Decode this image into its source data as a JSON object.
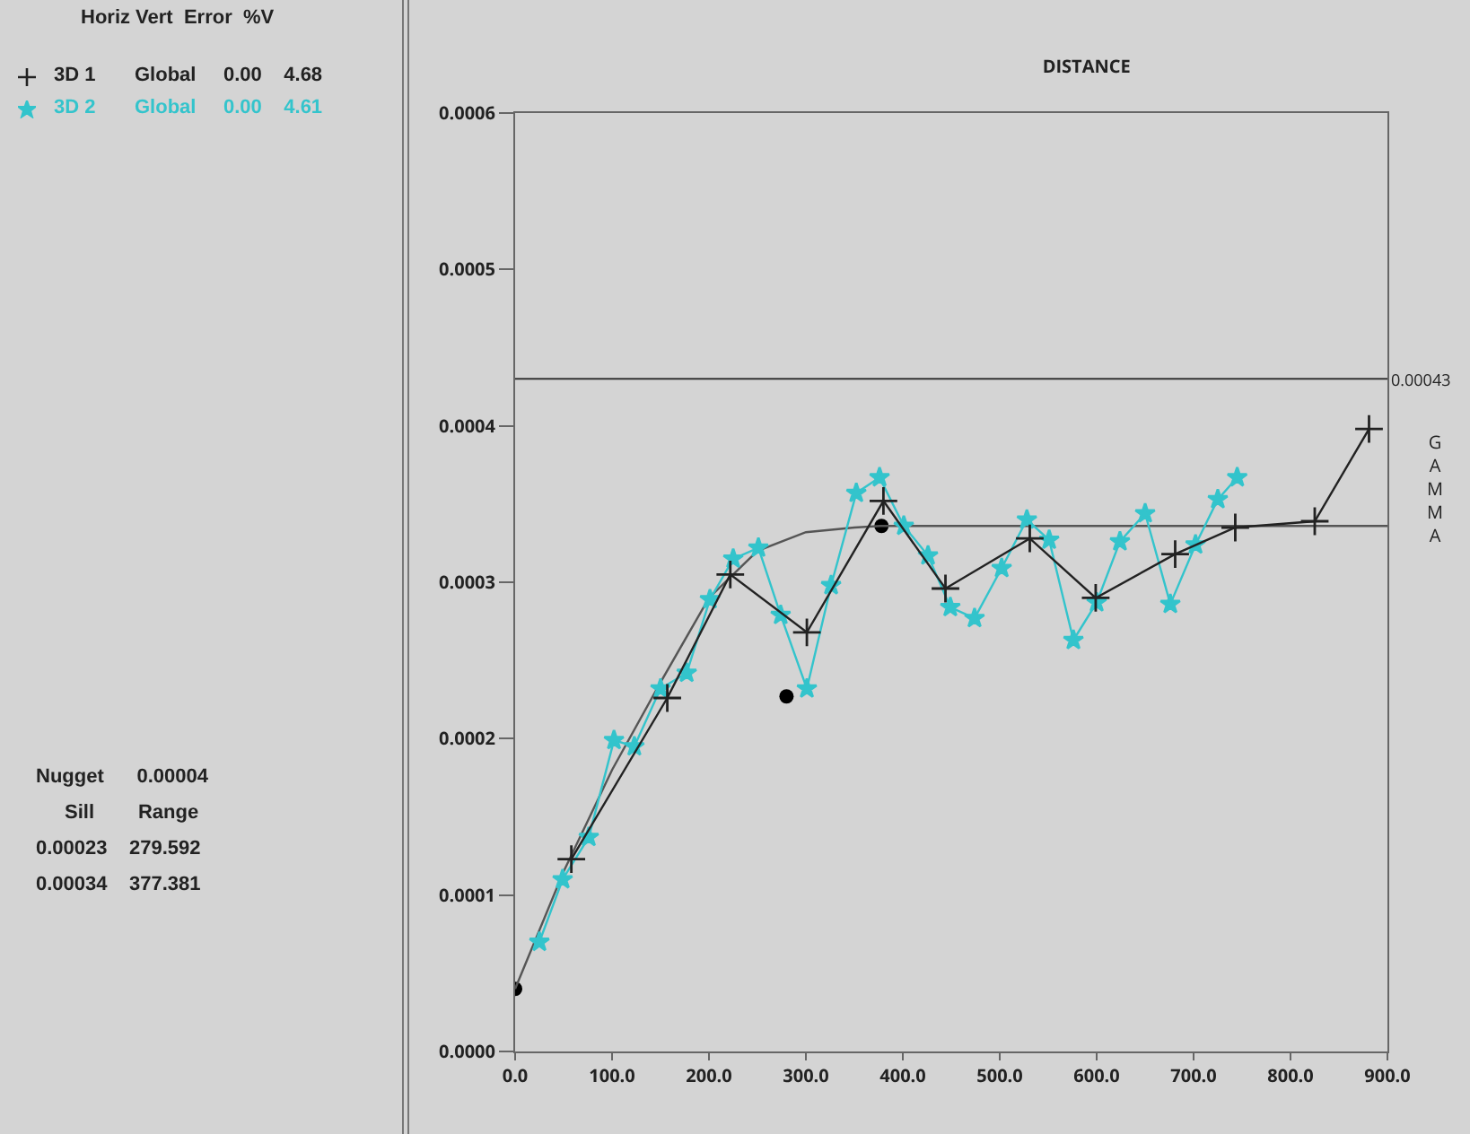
{
  "chart_data": {
    "type": "line",
    "title": "DISTANCE",
    "ylabel": "GAMMA",
    "xlim": [
      0,
      900
    ],
    "xticks": [
      {
        "value": 0,
        "label": "0.0"
      },
      {
        "value": 100,
        "label": "100.0"
      },
      {
        "value": 200,
        "label": "200.0"
      },
      {
        "value": 300,
        "label": "300.0"
      },
      {
        "value": 400,
        "label": "400.0"
      },
      {
        "value": 500,
        "label": "500.0"
      },
      {
        "value": 600,
        "label": "600.0"
      },
      {
        "value": 700,
        "label": "700.0"
      },
      {
        "value": 800,
        "label": "800.0"
      },
      {
        "value": 900,
        "label": "900.0"
      }
    ],
    "ylim": [
      0,
      0.0006
    ],
    "yticks": [
      {
        "value": 0,
        "label": "0.0000"
      },
      {
        "value": 0.0001,
        "label": "0.0001"
      },
      {
        "value": 0.0002,
        "label": "0.0002"
      },
      {
        "value": 0.0003,
        "label": "0.0003"
      },
      {
        "value": 0.0004,
        "label": "0.0004"
      },
      {
        "value": 0.0005,
        "label": "0.0005"
      },
      {
        "value": 0.0006,
        "label": "0.0006"
      }
    ],
    "grid": false,
    "legend": "left",
    "series": [
      {
        "name": "3D 1",
        "color": "#222222",
        "marker": "cross",
        "x": [
          58,
          157,
          222,
          301,
          380,
          444,
          531,
          599,
          681,
          743,
          825,
          881
        ],
        "values": [
          0.000123,
          0.000226,
          0.000305,
          0.000268,
          0.000352,
          0.000296,
          0.000328,
          0.00029,
          0.000318,
          0.000335,
          0.000339,
          0.000398
        ]
      },
      {
        "name": "3D 2",
        "color": "#33c4cc",
        "marker": "star",
        "x": [
          25,
          49,
          76,
          102,
          123,
          150,
          177,
          201,
          225,
          251,
          274,
          301,
          326,
          352,
          376,
          401,
          426,
          449,
          474,
          502,
          528,
          551,
          576,
          600,
          624,
          650,
          676,
          702,
          725,
          745
        ],
        "values": [
          7e-05,
          0.00011,
          0.000137,
          0.000199,
          0.000195,
          0.000232,
          0.000242,
          0.000289,
          0.000315,
          0.000322,
          0.000279,
          0.000232,
          0.000298,
          0.000357,
          0.000367,
          0.000336,
          0.000317,
          0.000284,
          0.000277,
          0.000309,
          0.00034,
          0.000327,
          0.000263,
          0.000287,
          0.000326,
          0.000344,
          0.000286,
          0.000324,
          0.000353,
          0.000367
        ]
      },
      {
        "color": "#555555",
        "marker": "none",
        "x": [
          0,
          50,
          100,
          150,
          200,
          250,
          300,
          350,
          377,
          900
        ],
        "values": [
          4e-05,
          0.000115,
          0.00018,
          0.000236,
          0.00029,
          0.00032,
          0.000332,
          0.000335,
          0.000336,
          0.000336
        ]
      },
      {
        "type": "scatter",
        "color": "#000000",
        "marker": "circle",
        "x": [
          0,
          280,
          378
        ],
        "values": [
          4e-05,
          0.000227,
          0.000336
        ]
      }
    ],
    "ref_lines": [
      {
        "axis": "y",
        "value": 0.00043,
        "label": "0.00043",
        "color": "#333333"
      }
    ],
    "annotations": [
      "Horiz Vert  Error  %V",
      "Global     0.00    4.68",
      "Global     0.00    4.61",
      "Nugget      0.00004",
      "Sill        Range",
      "0.00023    279.592",
      "0.00034    377.381"
    ]
  }
}
